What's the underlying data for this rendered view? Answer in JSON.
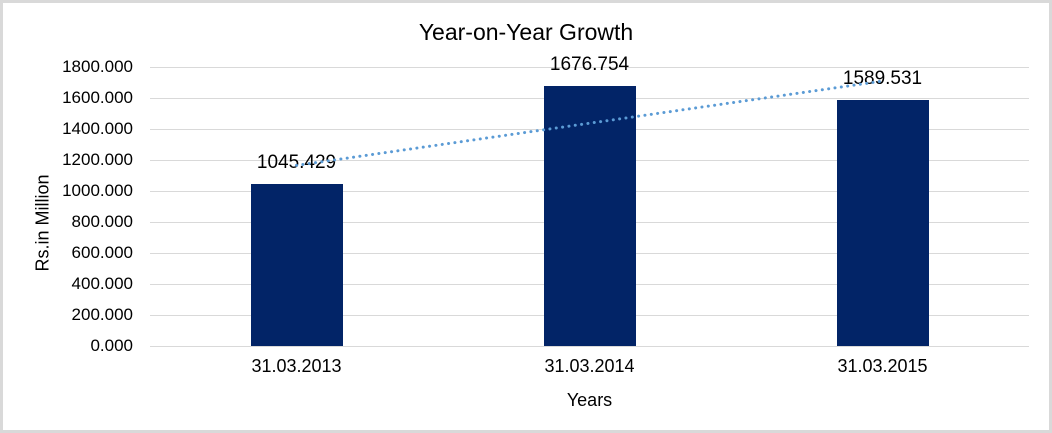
{
  "chart_data": {
    "type": "bar",
    "title": "Year-on-Year Growth",
    "xlabel": "Years",
    "ylabel": "Rs.in Million",
    "categories": [
      "31.03.2013",
      "31.03.2014",
      "31.03.2015"
    ],
    "values": [
      1045.429,
      1676.754,
      1589.531
    ],
    "value_labels": [
      "1045.429",
      "1676.754",
      "1589.531"
    ],
    "ylim": [
      0,
      1800
    ],
    "ytick_step": 200,
    "ytick_labels": [
      "0.000",
      "200.000",
      "400.000",
      "600.000",
      "800.000",
      "1000.000",
      "1200.000",
      "1400.000",
      "1600.000",
      "1800.000"
    ],
    "grid": "horizontal",
    "legend": "none",
    "trendline": {
      "type": "linear",
      "style": "dotted"
    },
    "colors": {
      "bar": "#022467",
      "trendline": "#5B9BD5",
      "gridline": "#D9D9D9",
      "text": "#000000",
      "frame_border": "#D9D9D9"
    }
  }
}
